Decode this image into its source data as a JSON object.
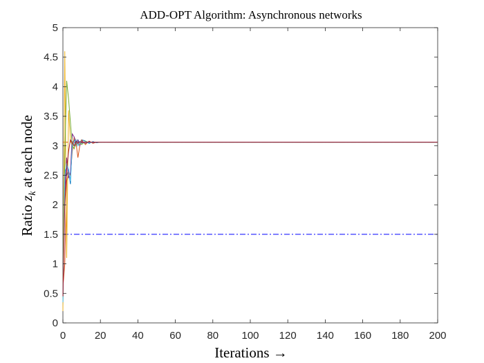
{
  "chart_data": {
    "type": "line",
    "title": "ADD-OPT Algorithm: Asynchronous networks",
    "xlabel": "Iterations →",
    "ylabel_prefix": "Ratio ",
    "ylabel_math_base": "z",
    "ylabel_math_sub": "k",
    "ylabel_suffix": " at each node",
    "xlim": [
      0,
      200
    ],
    "ylim": [
      0,
      5
    ],
    "xticks": [
      "0",
      "20",
      "40",
      "60",
      "80",
      "100",
      "120",
      "140",
      "160",
      "180",
      "200"
    ],
    "yticks": [
      "0",
      "0.5",
      "1",
      "1.5",
      "2",
      "2.5",
      "3",
      "3.5",
      "4",
      "4.5",
      "5"
    ],
    "grid": false,
    "reference_lines": [
      {
        "y": 3.06,
        "color": "#d95319",
        "style": "dash-dot"
      },
      {
        "y": 1.5,
        "color": "#0000ff",
        "style": "dash-dot"
      }
    ],
    "series": [
      {
        "color": "#0072bd",
        "x": [
          0,
          1,
          2,
          3,
          4,
          5,
          6,
          7,
          8,
          9,
          10,
          12,
          14,
          16,
          18,
          20,
          25,
          30,
          40,
          60,
          100,
          150,
          200
        ],
        "y": [
          0.3,
          2.6,
          2.5,
          2.6,
          2.35,
          3.05,
          3.1,
          3.0,
          3.1,
          3.05,
          3.1,
          3.08,
          3.04,
          3.07,
          3.05,
          3.06,
          3.06,
          3.06,
          3.06,
          3.06,
          3.06,
          3.06,
          3.06
        ]
      },
      {
        "color": "#d95319",
        "x": [
          0,
          1,
          2,
          3,
          4,
          5,
          6,
          7,
          8,
          9,
          10,
          12,
          14,
          16,
          18,
          20,
          25,
          30,
          40,
          60,
          100,
          150,
          200
        ],
        "y": [
          0.6,
          1.0,
          2.4,
          2.55,
          2.5,
          2.9,
          3.15,
          3.05,
          2.8,
          3.0,
          3.1,
          3.02,
          3.08,
          3.04,
          3.06,
          3.06,
          3.06,
          3.06,
          3.06,
          3.06,
          3.06,
          3.06,
          3.06
        ]
      },
      {
        "color": "#edb120",
        "x": [
          0,
          1,
          2,
          3,
          4,
          5,
          6,
          7,
          8,
          9,
          10,
          12,
          14,
          16,
          18,
          20,
          25,
          30,
          40,
          60,
          100,
          150,
          200
        ],
        "y": [
          0.2,
          4.6,
          1.1,
          3.6,
          3.1,
          3.0,
          2.95,
          3.08,
          3.02,
          3.05,
          3.08,
          3.03,
          3.07,
          3.05,
          3.06,
          3.06,
          3.06,
          3.06,
          3.06,
          3.06,
          3.06,
          3.06,
          3.06
        ]
      },
      {
        "color": "#7e2f8e",
        "x": [
          0,
          1,
          2,
          3,
          4,
          5,
          6,
          7,
          8,
          9,
          10,
          12,
          14,
          16,
          18,
          20,
          25,
          30,
          40,
          60,
          100,
          150,
          200
        ],
        "y": [
          0.5,
          2.2,
          2.8,
          2.45,
          2.55,
          3.2,
          3.15,
          3.05,
          3.1,
          3.0,
          3.08,
          3.04,
          3.07,
          3.05,
          3.06,
          3.06,
          3.06,
          3.06,
          3.06,
          3.06,
          3.06,
          3.06,
          3.06
        ]
      },
      {
        "color": "#77ac30",
        "x": [
          0,
          1,
          2,
          3,
          4,
          5,
          6,
          7,
          8,
          9,
          10,
          12,
          14,
          16,
          18,
          20,
          25,
          30,
          40,
          60,
          100,
          150,
          200
        ],
        "y": [
          0.4,
          2.8,
          4.1,
          3.8,
          3.4,
          3.0,
          2.95,
          3.1,
          3.0,
          3.05,
          3.02,
          3.08,
          3.05,
          3.06,
          3.06,
          3.06,
          3.06,
          3.06,
          3.06,
          3.06,
          3.06,
          3.06,
          3.06
        ]
      },
      {
        "color": "#4dbeee",
        "x": [
          0,
          1,
          2,
          3,
          4,
          5,
          6,
          7,
          8,
          9,
          10,
          12,
          14,
          16,
          18,
          20,
          25,
          30,
          40,
          60,
          100,
          150,
          200
        ],
        "y": [
          0.35,
          2.5,
          2.7,
          2.6,
          2.4,
          3.0,
          3.05,
          3.1,
          3.0,
          3.06,
          3.04,
          3.07,
          3.05,
          3.06,
          3.06,
          3.06,
          3.06,
          3.06,
          3.06,
          3.06,
          3.06,
          3.06,
          3.06
        ]
      },
      {
        "color": "#a2142f",
        "x": [
          0,
          1,
          2,
          3,
          4,
          5,
          6,
          7,
          8,
          9,
          10,
          12,
          14,
          16,
          18,
          20,
          25,
          30,
          40,
          60,
          100,
          150,
          200
        ],
        "y": [
          0.45,
          2.0,
          2.6,
          2.9,
          3.1,
          3.05,
          3.0,
          3.08,
          3.04,
          3.07,
          3.05,
          3.06,
          3.06,
          3.06,
          3.06,
          3.06,
          3.06,
          3.06,
          3.06,
          3.06,
          3.06,
          3.06,
          3.06
        ]
      }
    ]
  }
}
